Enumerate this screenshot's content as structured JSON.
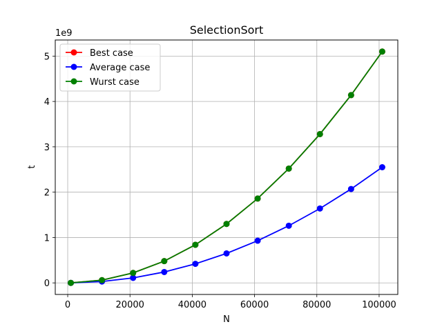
{
  "chart_data": {
    "type": "line",
    "title": "SelectionSort",
    "xlabel": "N",
    "ylabel": "t",
    "y_offset_label": "1e9",
    "y_scale": 1000000000,
    "xlim": [
      -4000,
      106000
    ],
    "ylim": [
      -0.255,
      5.355
    ],
    "x_ticks": [
      0,
      20000,
      40000,
      60000,
      80000,
      100000
    ],
    "y_ticks": [
      0,
      1,
      2,
      3,
      4,
      5
    ],
    "grid": true,
    "legend_position": "top-left",
    "x": [
      1000,
      11000,
      21000,
      31000,
      41000,
      51000,
      61000,
      71000,
      81000,
      91000,
      101000
    ],
    "series": [
      {
        "name": "Best case",
        "color": "#ff0000",
        "values": [
          0.0005,
          0.06,
          0.22,
          0.48,
          0.84,
          1.3,
          1.86,
          2.52,
          3.28,
          4.14,
          5.1
        ]
      },
      {
        "name": "Average case",
        "color": "#0000ff",
        "values": [
          0.0003,
          0.03,
          0.11,
          0.24,
          0.42,
          0.65,
          0.93,
          1.26,
          1.64,
          2.07,
          2.55
        ]
      },
      {
        "name": "Wurst case",
        "color": "#008000",
        "values": [
          0.0005,
          0.06,
          0.22,
          0.48,
          0.84,
          1.3,
          1.86,
          2.52,
          3.28,
          4.14,
          5.1
        ]
      }
    ]
  }
}
